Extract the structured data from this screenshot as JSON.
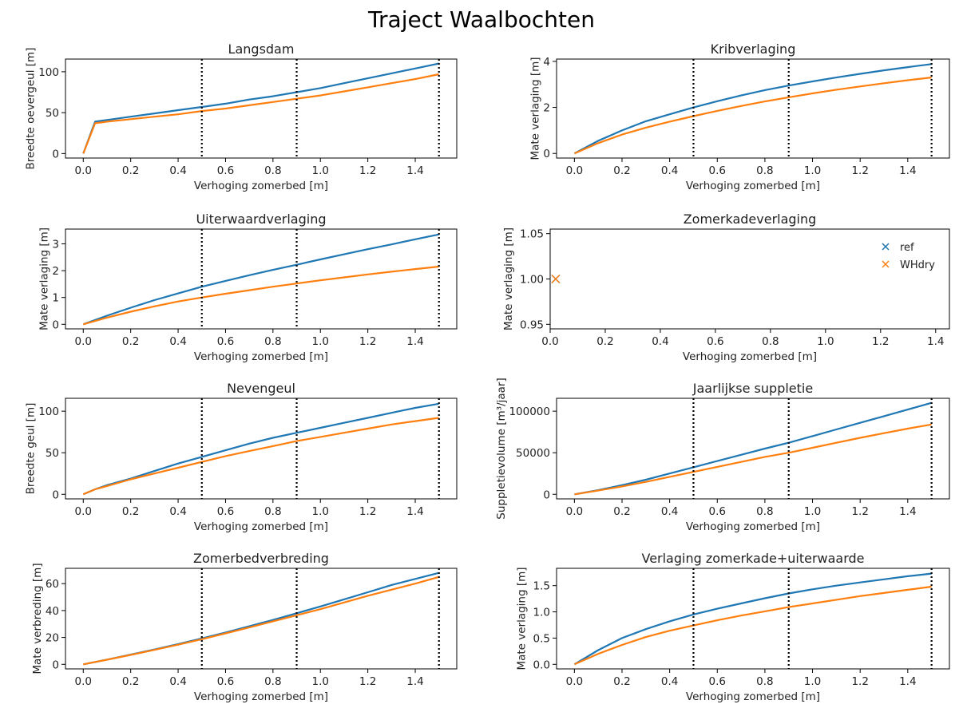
{
  "figure": {
    "title": "Traject Waalbochten"
  },
  "colors": {
    "ref": "#1f77b4",
    "WHdry": "#ff7f0e",
    "marker_line": "#000000"
  },
  "chart_data": [
    {
      "type": "line",
      "title": "Langsdam",
      "xlabel": "Verhoging zomerbed [m]",
      "ylabel": "Breedte oevergeul [m]",
      "xlim": [
        -0.075,
        1.575
      ],
      "ylim": [
        -5.5,
        115.5
      ],
      "xticks": [
        0.0,
        0.2,
        0.4,
        0.6,
        0.8,
        1.0,
        1.2,
        1.4
      ],
      "xtick_labels": [
        "0.0",
        "0.2",
        "0.4",
        "0.6",
        "0.8",
        "1.0",
        "1.2",
        "1.4"
      ],
      "yticks": [
        0,
        50,
        100
      ],
      "ytick_labels": [
        "0",
        "50",
        "100"
      ],
      "vlines": [
        0.5,
        0.9,
        1.5
      ],
      "series": [
        {
          "name": "ref",
          "x": [
            0,
            0.05,
            0.1,
            0.2,
            0.3,
            0.4,
            0.5,
            0.6,
            0.7,
            0.8,
            0.9,
            1.0,
            1.1,
            1.2,
            1.3,
            1.4,
            1.5
          ],
          "y": [
            0,
            39,
            41,
            45,
            49,
            53,
            57,
            61,
            66,
            70,
            75,
            80,
            86,
            92,
            98,
            104,
            110
          ]
        },
        {
          "name": "WHdry",
          "x": [
            0,
            0.05,
            0.1,
            0.2,
            0.3,
            0.4,
            0.5,
            0.6,
            0.7,
            0.8,
            0.9,
            1.0,
            1.1,
            1.2,
            1.3,
            1.4,
            1.5
          ],
          "y": [
            0,
            37,
            39,
            42,
            45,
            48,
            52,
            55,
            59,
            63,
            67,
            71,
            76,
            81,
            86,
            91,
            97
          ]
        }
      ]
    },
    {
      "type": "line",
      "title": "Kribverlaging",
      "xlabel": "Verhoging zomerbed [m]",
      "ylabel": "Mate verlaging [m]",
      "xlim": [
        -0.075,
        1.575
      ],
      "ylim": [
        -0.2,
        4.1
      ],
      "xticks": [
        0.0,
        0.2,
        0.4,
        0.6,
        0.8,
        1.0,
        1.2,
        1.4
      ],
      "xtick_labels": [
        "0.0",
        "0.2",
        "0.4",
        "0.6",
        "0.8",
        "1.0",
        "1.2",
        "1.4"
      ],
      "yticks": [
        0,
        2,
        4
      ],
      "ytick_labels": [
        "0",
        "2",
        "4"
      ],
      "vlines": [
        0.5,
        0.9,
        1.5
      ],
      "series": [
        {
          "name": "ref",
          "x": [
            0,
            0.1,
            0.2,
            0.3,
            0.4,
            0.5,
            0.6,
            0.7,
            0.8,
            0.9,
            1.0,
            1.1,
            1.2,
            1.3,
            1.4,
            1.5
          ],
          "y": [
            0,
            0.55,
            1.0,
            1.4,
            1.7,
            2.0,
            2.27,
            2.52,
            2.75,
            2.95,
            3.13,
            3.3,
            3.46,
            3.61,
            3.75,
            3.88
          ]
        },
        {
          "name": "WHdry",
          "x": [
            0,
            0.1,
            0.2,
            0.3,
            0.4,
            0.5,
            0.6,
            0.7,
            0.8,
            0.9,
            1.0,
            1.1,
            1.2,
            1.3,
            1.4,
            1.5
          ],
          "y": [
            0,
            0.45,
            0.82,
            1.12,
            1.38,
            1.62,
            1.85,
            2.06,
            2.26,
            2.44,
            2.61,
            2.77,
            2.91,
            3.05,
            3.18,
            3.3
          ]
        }
      ]
    },
    {
      "type": "line",
      "title": "Uiterwaardverlaging",
      "xlabel": "Verhoging zomerbed [m]",
      "ylabel": "Mate verlaging [m]",
      "xlim": [
        -0.075,
        1.575
      ],
      "ylim": [
        -0.17,
        3.55
      ],
      "xticks": [
        0.0,
        0.2,
        0.4,
        0.6,
        0.8,
        1.0,
        1.2,
        1.4
      ],
      "xtick_labels": [
        "0.0",
        "0.2",
        "0.4",
        "0.6",
        "0.8",
        "1.0",
        "1.2",
        "1.4"
      ],
      "yticks": [
        0,
        1,
        2,
        3
      ],
      "ytick_labels": [
        "0",
        "1",
        "2",
        "3"
      ],
      "vlines": [
        0.5,
        0.9,
        1.5
      ],
      "series": [
        {
          "name": "ref",
          "x": [
            0,
            0.1,
            0.2,
            0.3,
            0.4,
            0.5,
            0.6,
            0.7,
            0.8,
            0.9,
            1.0,
            1.1,
            1.2,
            1.3,
            1.4,
            1.5
          ],
          "y": [
            0,
            0.32,
            0.62,
            0.9,
            1.15,
            1.4,
            1.62,
            1.83,
            2.03,
            2.22,
            2.42,
            2.61,
            2.8,
            2.98,
            3.17,
            3.35
          ]
        },
        {
          "name": "WHdry",
          "x": [
            0,
            0.1,
            0.2,
            0.3,
            0.4,
            0.5,
            0.6,
            0.7,
            0.8,
            0.9,
            1.0,
            1.1,
            1.2,
            1.3,
            1.4,
            1.5
          ],
          "y": [
            0,
            0.25,
            0.47,
            0.67,
            0.85,
            1.0,
            1.14,
            1.27,
            1.4,
            1.52,
            1.64,
            1.75,
            1.86,
            1.96,
            2.06,
            2.15
          ]
        }
      ]
    },
    {
      "type": "scatter",
      "title": "Zomerkadeverlaging",
      "xlabel": "Verhoging zomerbed [m]",
      "ylabel": "Mate verlaging [m]",
      "xlim": [
        0.0,
        1.45
      ],
      "ylim": [
        0.945,
        1.055
      ],
      "xticks": [
        0.0,
        0.2,
        0.4,
        0.6,
        0.8,
        1.0,
        1.2,
        1.4
      ],
      "xtick_labels": [
        "0.0",
        "0.2",
        "0.4",
        "0.6",
        "0.8",
        "1.0",
        "1.2",
        "1.4"
      ],
      "yticks": [
        0.95,
        1.0,
        1.05
      ],
      "ytick_labels": [
        "0.95",
        "1.00",
        "1.05"
      ],
      "legend": {
        "position": "upper-right",
        "entries": [
          "ref",
          "WHdry"
        ]
      },
      "series": [
        {
          "name": "ref",
          "x": [
            0.02
          ],
          "y": [
            1.0
          ]
        },
        {
          "name": "WHdry",
          "x": [
            0.02
          ],
          "y": [
            1.0
          ]
        }
      ]
    },
    {
      "type": "line",
      "title": "Nevengeul",
      "xlabel": "Verhoging zomerbed [m]",
      "ylabel": "Breedte geul [m]",
      "xlim": [
        -0.075,
        1.575
      ],
      "ylim": [
        -5.5,
        115.5
      ],
      "xticks": [
        0.0,
        0.2,
        0.4,
        0.6,
        0.8,
        1.0,
        1.2,
        1.4
      ],
      "xtick_labels": [
        "0.0",
        "0.2",
        "0.4",
        "0.6",
        "0.8",
        "1.0",
        "1.2",
        "1.4"
      ],
      "yticks": [
        0,
        50,
        100
      ],
      "ytick_labels": [
        "0",
        "50",
        "100"
      ],
      "vlines": [
        0.5,
        0.9,
        1.5
      ],
      "series": [
        {
          "name": "ref",
          "x": [
            0,
            0.05,
            0.1,
            0.2,
            0.3,
            0.4,
            0.5,
            0.6,
            0.7,
            0.8,
            0.9,
            1.0,
            1.1,
            1.2,
            1.3,
            1.4,
            1.5
          ],
          "y": [
            0,
            6,
            11,
            19,
            28,
            37,
            45,
            53,
            61,
            68,
            74,
            80,
            86,
            92,
            98,
            104,
            109
          ]
        },
        {
          "name": "WHdry",
          "x": [
            0,
            0.05,
            0.1,
            0.2,
            0.3,
            0.4,
            0.5,
            0.6,
            0.7,
            0.8,
            0.9,
            1.0,
            1.1,
            1.2,
            1.3,
            1.4,
            1.5
          ],
          "y": [
            0,
            6,
            10,
            18,
            25,
            32,
            39,
            46,
            52,
            58,
            64,
            69,
            74,
            79,
            84,
            88,
            92
          ]
        }
      ]
    },
    {
      "type": "line",
      "title": "Jaarlijkse suppletie",
      "xlabel": "Verhoging zomerbed [m]",
      "ylabel": "Suppletievolume [m³/jaar]",
      "xlim": [
        -0.075,
        1.575
      ],
      "ylim": [
        -5500,
        115500
      ],
      "xticks": [
        0.0,
        0.2,
        0.4,
        0.6,
        0.8,
        1.0,
        1.2,
        1.4
      ],
      "xtick_labels": [
        "0.0",
        "0.2",
        "0.4",
        "0.6",
        "0.8",
        "1.0",
        "1.2",
        "1.4"
      ],
      "yticks": [
        0,
        50000,
        100000
      ],
      "ytick_labels": [
        "0",
        "50000",
        "100000"
      ],
      "vlines": [
        0.5,
        0.9,
        1.5
      ],
      "series": [
        {
          "name": "ref",
          "x": [
            0,
            0.1,
            0.2,
            0.3,
            0.4,
            0.5,
            0.6,
            0.7,
            0.8,
            0.9,
            1.0,
            1.1,
            1.2,
            1.3,
            1.4,
            1.5
          ],
          "y": [
            0,
            5000,
            11000,
            17500,
            25000,
            32500,
            40000,
            47500,
            55000,
            62000,
            70000,
            78000,
            86000,
            94000,
            102000,
            110000
          ]
        },
        {
          "name": "WHdry",
          "x": [
            0,
            0.1,
            0.2,
            0.3,
            0.4,
            0.5,
            0.6,
            0.7,
            0.8,
            0.9,
            1.0,
            1.1,
            1.2,
            1.3,
            1.4,
            1.5
          ],
          "y": [
            0,
            4500,
            9500,
            15000,
            21000,
            27000,
            33000,
            39000,
            45000,
            50000,
            56000,
            62000,
            68000,
            73500,
            79000,
            84000
          ]
        }
      ]
    },
    {
      "type": "line",
      "title": "Zomerbedverbreding",
      "xlabel": "Verhoging zomerbed [m]",
      "ylabel": "Mate verbreding [m]",
      "xlim": [
        -0.075,
        1.575
      ],
      "ylim": [
        -3.4,
        71.4
      ],
      "xticks": [
        0.0,
        0.2,
        0.4,
        0.6,
        0.8,
        1.0,
        1.2,
        1.4
      ],
      "xtick_labels": [
        "0.0",
        "0.2",
        "0.4",
        "0.6",
        "0.8",
        "1.0",
        "1.2",
        "1.4"
      ],
      "yticks": [
        0,
        20,
        40,
        60
      ],
      "ytick_labels": [
        "0",
        "20",
        "40",
        "60"
      ],
      "vlines": [
        0.5,
        0.9,
        1.5
      ],
      "series": [
        {
          "name": "ref",
          "x": [
            0,
            0.1,
            0.2,
            0.3,
            0.4,
            0.5,
            0.6,
            0.7,
            0.8,
            0.9,
            1.0,
            1.1,
            1.2,
            1.3,
            1.4,
            1.5
          ],
          "y": [
            0,
            3.5,
            7.2,
            11,
            15,
            19.3,
            23.7,
            28.3,
            33,
            38,
            43,
            48.3,
            53.6,
            59,
            63.5,
            68
          ]
        },
        {
          "name": "WHdry",
          "x": [
            0,
            0.1,
            0.2,
            0.3,
            0.4,
            0.5,
            0.6,
            0.7,
            0.8,
            0.9,
            1.0,
            1.1,
            1.2,
            1.3,
            1.4,
            1.5
          ],
          "y": [
            0,
            3.4,
            7.0,
            10.7,
            14.6,
            18.7,
            23,
            27.4,
            32,
            36.5,
            41,
            46,
            51,
            55.5,
            60,
            65
          ]
        }
      ]
    },
    {
      "type": "line",
      "title": "Verlaging zomerkade+uiterwaarde",
      "xlabel": "Verhoging zomerbed [m]",
      "ylabel": "Mate verlaging [m]",
      "xlim": [
        -0.075,
        1.575
      ],
      "ylim": [
        -0.087,
        1.83
      ],
      "xticks": [
        0.0,
        0.2,
        0.4,
        0.6,
        0.8,
        1.0,
        1.2,
        1.4
      ],
      "xtick_labels": [
        "0.0",
        "0.2",
        "0.4",
        "0.6",
        "0.8",
        "1.0",
        "1.2",
        "1.4"
      ],
      "yticks": [
        0.0,
        0.5,
        1.0,
        1.5
      ],
      "ytick_labels": [
        "0.0",
        "0.5",
        "1.0",
        "1.5"
      ],
      "vlines": [
        0.5,
        0.9,
        1.5
      ],
      "series": [
        {
          "name": "ref",
          "x": [
            0,
            0.1,
            0.2,
            0.3,
            0.4,
            0.5,
            0.6,
            0.7,
            0.8,
            0.9,
            1.0,
            1.1,
            1.2,
            1.3,
            1.4,
            1.5
          ],
          "y": [
            0,
            0.27,
            0.5,
            0.67,
            0.82,
            0.95,
            1.06,
            1.16,
            1.26,
            1.35,
            1.43,
            1.5,
            1.56,
            1.62,
            1.68,
            1.73
          ]
        },
        {
          "name": "WHdry",
          "x": [
            0,
            0.1,
            0.2,
            0.3,
            0.4,
            0.5,
            0.6,
            0.7,
            0.8,
            0.9,
            1.0,
            1.1,
            1.2,
            1.3,
            1.4,
            1.5
          ],
          "y": [
            0,
            0.2,
            0.37,
            0.52,
            0.64,
            0.74,
            0.84,
            0.93,
            1.01,
            1.09,
            1.16,
            1.23,
            1.3,
            1.36,
            1.42,
            1.48
          ]
        }
      ]
    }
  ]
}
